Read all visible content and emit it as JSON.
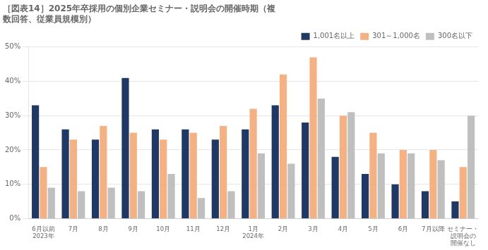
{
  "chart_data": {
    "type": "bar",
    "title": "［図表14］2025年卒採用の個別企業セミナー・説明会の開催時期（複\n数回答、従業員規模別）",
    "categories": [
      "6月以前",
      "7月",
      "8月",
      "9月",
      "10月",
      "11月",
      "12月",
      "1月",
      "2月",
      "3月",
      "4月",
      "5月",
      "6月",
      "7月以降",
      "セミナー・\n説明会の\n開催なし"
    ],
    "annotations": [
      {
        "text": "2023年",
        "category": "6月以前"
      },
      {
        "text": "2024年",
        "category": "1月"
      }
    ],
    "series": [
      {
        "name": "1,001名以上",
        "color": "#1f3864",
        "values": [
          33,
          26,
          23,
          41,
          26,
          26,
          23,
          26,
          33,
          28,
          18,
          13,
          10,
          8,
          5
        ]
      },
      {
        "name": "301～1,000名",
        "color": "#f4b183",
        "values": [
          15,
          23,
          27,
          25,
          23,
          25,
          27,
          32,
          42,
          47,
          30,
          25,
          20,
          20,
          15
        ]
      },
      {
        "name": "300名以下",
        "color": "#bfbfbf",
        "values": [
          9,
          8,
          9,
          8,
          13,
          6,
          8,
          19,
          16,
          35,
          31,
          19,
          19,
          17,
          30
        ]
      }
    ],
    "ylim": [
      0,
      50
    ],
    "yticks": [
      {
        "value": 0,
        "label": "0%"
      },
      {
        "value": 10,
        "label": "10%"
      },
      {
        "value": 20,
        "label": "20%"
      },
      {
        "value": 30,
        "label": "30%"
      },
      {
        "value": 40,
        "label": "40%"
      },
      {
        "value": 50,
        "label": "50%"
      }
    ],
    "grid": true,
    "legend": "upper right"
  }
}
